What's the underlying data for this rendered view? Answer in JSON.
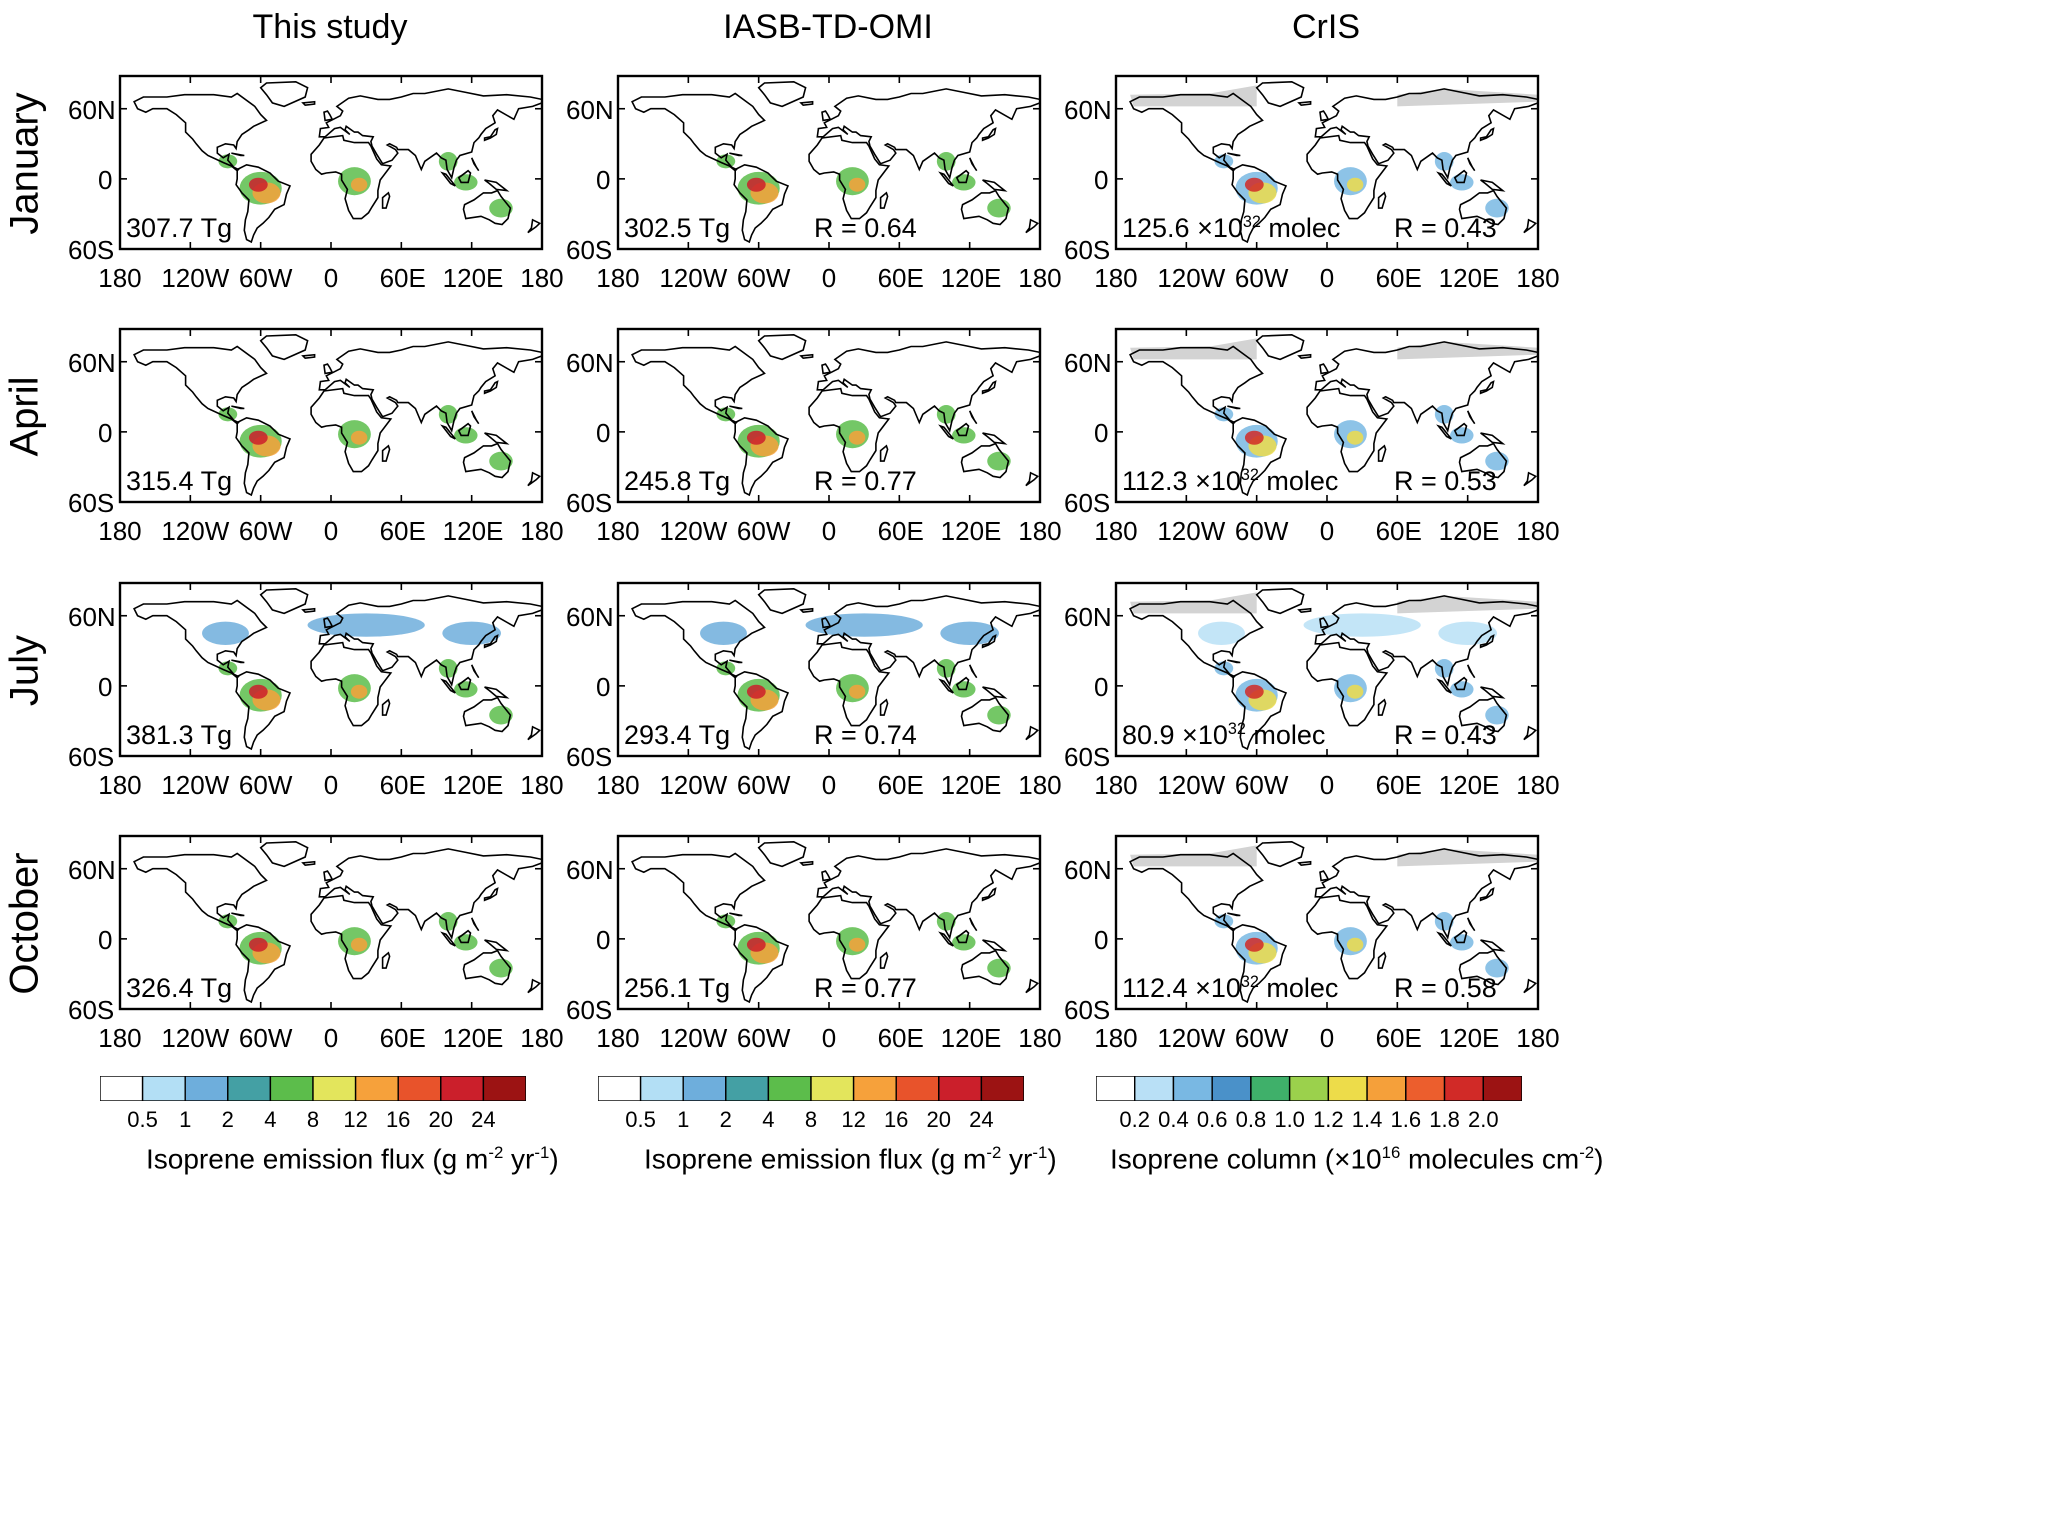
{
  "columns": [
    {
      "title": "This study",
      "type": "emission"
    },
    {
      "title": "IASB-TD-OMI",
      "type": "emission"
    },
    {
      "title": "CrIS",
      "type": "column"
    }
  ],
  "rows": [
    "January",
    "April",
    "July",
    "October"
  ],
  "panels": [
    [
      {
        "total": "307.7 Tg",
        "r": ""
      },
      {
        "total": "302.5 Tg",
        "r": "R = 0.64"
      },
      {
        "total": "125.6 ×10",
        "sup": "32",
        "unit": " molec",
        "r": "R = 0.43"
      }
    ],
    [
      {
        "total": "315.4 Tg",
        "r": ""
      },
      {
        "total": "245.8 Tg",
        "r": "R = 0.77"
      },
      {
        "total": "112.3 ×10",
        "sup": "32",
        "unit": " molec",
        "r": "R = 0.53"
      }
    ],
    [
      {
        "total": "381.3 Tg",
        "r": ""
      },
      {
        "total": "293.4 Tg",
        "r": "R = 0.74"
      },
      {
        "total": "80.9 ×10",
        "sup": "32",
        "unit": " molec",
        "r": "R = 0.43"
      }
    ],
    [
      {
        "total": "326.4 Tg",
        "r": ""
      },
      {
        "total": "256.1 Tg",
        "r": "R = 0.77"
      },
      {
        "total": "112.4 ×10",
        "sup": "32",
        "unit": " molec",
        "r": "R = 0.58"
      }
    ]
  ],
  "x_ticks": [
    "180",
    "120W",
    "60W",
    "0",
    "60E",
    "120E",
    "180"
  ],
  "y_ticks": [
    "60N",
    "0",
    "60S"
  ],
  "colorbars": [
    {
      "ticks": [
        "0.5",
        "1",
        "2",
        "4",
        "8",
        "12",
        "16",
        "20",
        "24"
      ],
      "colors": [
        "#ffffff",
        "#b3dff5",
        "#6eaedc",
        "#44a0a4",
        "#5cbd4b",
        "#e3e55c",
        "#f6a13b",
        "#e8532b",
        "#cb1f2b",
        "#9c1313"
      ],
      "title_pre": "Isoprene emission flux (g m",
      "sup1": "-2",
      "title_mid": " yr",
      "sup2": "-1",
      "title_post": ")"
    },
    {
      "ticks": [
        "0.5",
        "1",
        "2",
        "4",
        "8",
        "12",
        "16",
        "20",
        "24"
      ],
      "colors": [
        "#ffffff",
        "#b3dff5",
        "#6eaedc",
        "#44a0a4",
        "#5cbd4b",
        "#e3e55c",
        "#f6a13b",
        "#e8532b",
        "#cb1f2b",
        "#9c1313"
      ],
      "title_pre": "Isoprene emission flux (g m",
      "sup1": "-2",
      "title_mid": " yr",
      "sup2": "-1",
      "title_post": ")"
    },
    {
      "ticks": [
        "0.2",
        "0.4",
        "0.6",
        "0.8",
        "1.0",
        "1.2",
        "1.4",
        "1.6",
        "1.8",
        "2.0"
      ],
      "colors": [
        "#ffffff",
        "#b9e0f6",
        "#79b8e3",
        "#4a91c9",
        "#3fb06a",
        "#9bd14c",
        "#eddc4a",
        "#f5a03a",
        "#ec5e2d",
        "#d12a27",
        "#9c1313"
      ],
      "title_pre": "Isoprene column (×10",
      "sup1": "16",
      "title_mid": " molecules cm",
      "sup2": "-2",
      "title_post": ")"
    }
  ],
  "colors": {
    "land_outline": "#000000",
    "missing": "#d3d3d3",
    "ocean": "#ffffff"
  }
}
